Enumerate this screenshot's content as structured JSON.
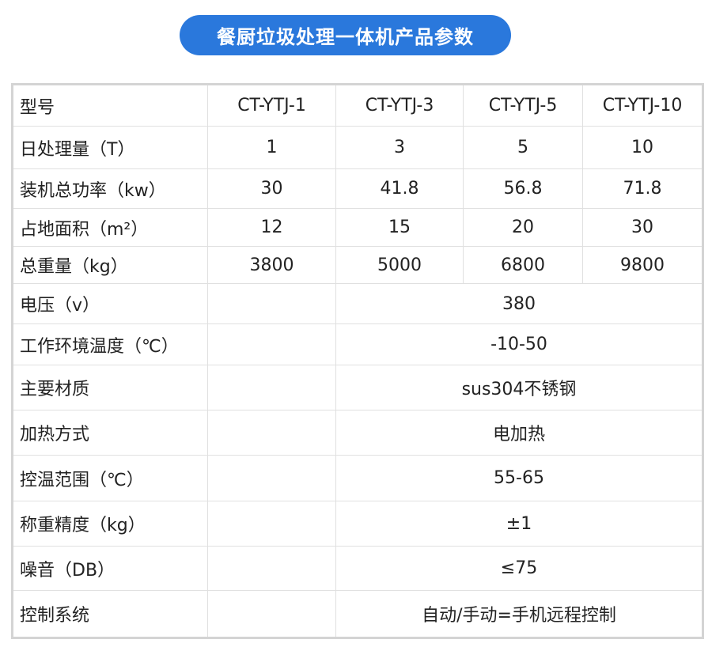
{
  "title": "餐厨垃圾处理一体机产品参数",
  "colors": {
    "title_bg": "#2a78dc",
    "border": "#d4d4d4"
  },
  "table": {
    "header": {
      "label": "型号",
      "models": [
        "CT-YTJ-1",
        "CT-YTJ-3",
        "CT-YTJ-5",
        "CT-YTJ-10"
      ]
    },
    "model_rows": [
      {
        "label": "日处理量（T）",
        "values": [
          "1",
          "3",
          "5",
          "10"
        ]
      },
      {
        "label": "装机总功率（kw）",
        "values": [
          "30",
          "41.8",
          "56.8",
          "71.8"
        ]
      },
      {
        "label": "占地面积（m²）",
        "values": [
          "12",
          "15",
          "20",
          "30"
        ]
      },
      {
        "label": "总重量（kg）",
        "values": [
          "3800",
          "5000",
          "6800",
          "9800"
        ]
      }
    ],
    "common_rows": [
      {
        "label": "电压（v）",
        "value": "380"
      },
      {
        "label": "工作环境温度（℃）",
        "value": "-10-50"
      },
      {
        "label": "主要材质",
        "value": "sus304不锈钢"
      },
      {
        "label": "加热方式",
        "value": "电加热"
      },
      {
        "label": "控温范围（℃）",
        "value": "55-65"
      },
      {
        "label": "称重精度（kg）",
        "value": "±1"
      },
      {
        "label": "噪音（DB）",
        "value": "≤75"
      },
      {
        "label": "控制系统",
        "value": "自动/手动=手机远程控制"
      }
    ]
  }
}
